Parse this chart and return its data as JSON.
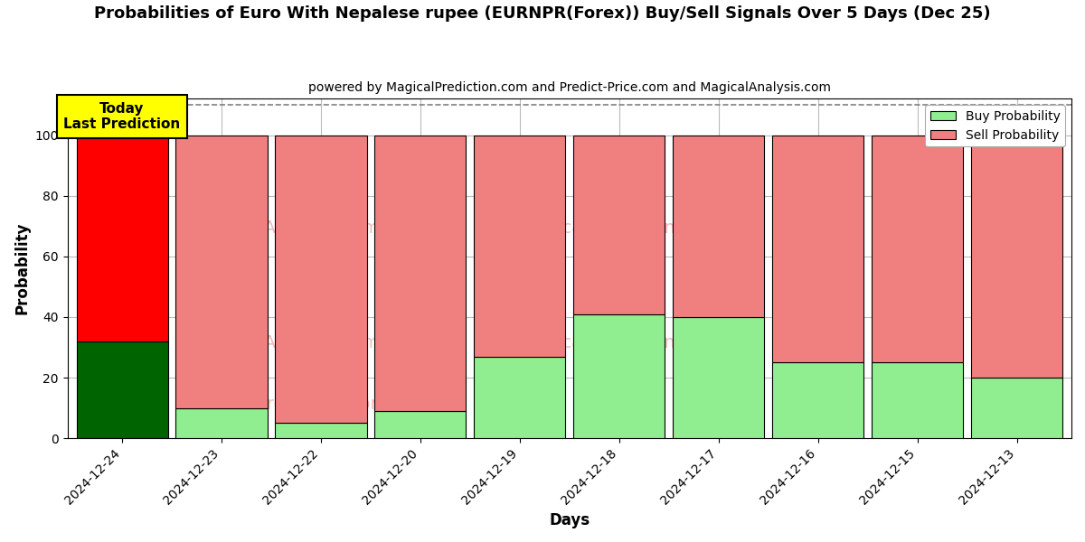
{
  "title": "Probabilities of Euro With Nepalese rupee (EURNPR(Forex)) Buy/Sell Signals Over 5 Days (Dec 25)",
  "subtitle": "powered by MagicalPrediction.com and Predict-Price.com and MagicalAnalysis.com",
  "xlabel": "Days",
  "ylabel": "Probability",
  "categories": [
    "2024-12-24",
    "2024-12-23",
    "2024-12-22",
    "2024-12-20",
    "2024-12-19",
    "2024-12-18",
    "2024-12-17",
    "2024-12-16",
    "2024-12-15",
    "2024-12-13"
  ],
  "buy_values": [
    32,
    10,
    5,
    9,
    27,
    41,
    40,
    25,
    25,
    20
  ],
  "sell_values": [
    68,
    90,
    95,
    91,
    73,
    59,
    60,
    75,
    75,
    80
  ],
  "buy_color_first": "#006400",
  "sell_color_first": "#ff0000",
  "buy_color_rest": "#90EE90",
  "sell_color_rest": "#F08080",
  "bar_edge_color": "#000000",
  "ylim": [
    0,
    112
  ],
  "yticks": [
    0,
    20,
    40,
    60,
    80,
    100
  ],
  "dashed_line_y": 110,
  "today_box_color": "#ffff00",
  "today_label": "Today\nLast Prediction",
  "background_color": "#ffffff",
  "grid_color": "#bbbbbb",
  "bar_width": 0.92
}
